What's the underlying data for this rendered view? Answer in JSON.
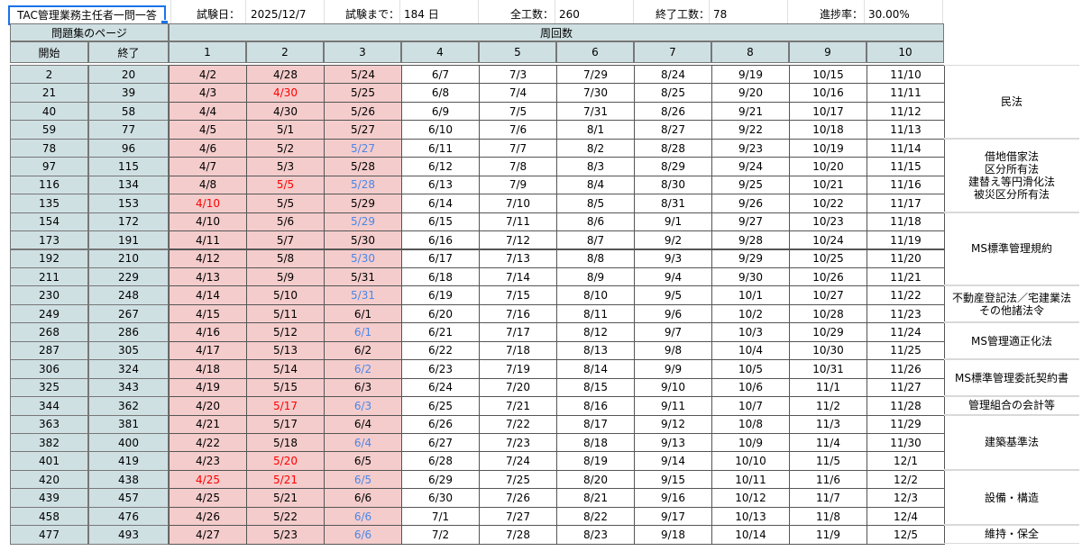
{
  "title": "TAC管理業務主任者一問一答",
  "info": {
    "exam_date_label": "試験日：",
    "exam_date_value": "2025/12/7",
    "until_label": "試験まで：",
    "until_value": "184 日",
    "total_label": "全工数：",
    "total_value": "260",
    "done_label": "終了工数：",
    "done_value": "78",
    "progress_label": "進捗率：",
    "progress_value": "30.00%"
  },
  "headers": {
    "pages_group": "問題集のページ",
    "laps_group": "周回数",
    "start": "開始",
    "end": "終了",
    "laps": [
      "1",
      "2",
      "3",
      "4",
      "5",
      "6",
      "7",
      "8",
      "9",
      "10"
    ]
  },
  "rows": [
    {
      "start": "2",
      "end": "20",
      "dates": [
        "4/2",
        "4/28",
        "5/24",
        "6/7",
        "7/3",
        "7/29",
        "8/24",
        "9/19",
        "10/15",
        "11/10"
      ]
    },
    {
      "start": "21",
      "end": "39",
      "dates": [
        "4/3",
        "4/30",
        "5/25",
        "6/8",
        "7/4",
        "7/30",
        "8/25",
        "9/20",
        "10/16",
        "11/11"
      ]
    },
    {
      "start": "40",
      "end": "58",
      "dates": [
        "4/4",
        "4/30",
        "5/26",
        "6/9",
        "7/5",
        "7/31",
        "8/26",
        "9/21",
        "10/17",
        "11/12"
      ]
    },
    {
      "start": "59",
      "end": "77",
      "dates": [
        "4/5",
        "5/1",
        "5/27",
        "6/10",
        "7/6",
        "8/1",
        "8/27",
        "9/22",
        "10/18",
        "11/13"
      ]
    },
    {
      "start": "78",
      "end": "96",
      "dates": [
        "4/6",
        "5/2",
        "5/27",
        "6/11",
        "7/7",
        "8/2",
        "8/28",
        "9/23",
        "10/19",
        "11/14"
      ]
    },
    {
      "start": "97",
      "end": "115",
      "dates": [
        "4/7",
        "5/3",
        "5/28",
        "6/12",
        "7/8",
        "8/3",
        "8/29",
        "9/24",
        "10/20",
        "11/15"
      ]
    },
    {
      "start": "116",
      "end": "134",
      "dates": [
        "4/8",
        "5/5",
        "5/28",
        "6/13",
        "7/9",
        "8/4",
        "8/30",
        "9/25",
        "10/21",
        "11/16"
      ]
    },
    {
      "start": "135",
      "end": "153",
      "dates": [
        "4/10",
        "5/5",
        "5/29",
        "6/14",
        "7/10",
        "8/5",
        "8/31",
        "9/26",
        "10/22",
        "11/17"
      ]
    },
    {
      "start": "154",
      "end": "172",
      "dates": [
        "4/10",
        "5/6",
        "5/29",
        "6/15",
        "7/11",
        "8/6",
        "9/1",
        "9/27",
        "10/23",
        "11/18"
      ]
    },
    {
      "start": "173",
      "end": "191",
      "dates": [
        "4/11",
        "5/7",
        "5/30",
        "6/16",
        "7/12",
        "8/7",
        "9/2",
        "9/28",
        "10/24",
        "11/19"
      ]
    },
    {
      "start": "192",
      "end": "210",
      "dates": [
        "4/12",
        "5/8",
        "5/30",
        "6/17",
        "7/13",
        "8/8",
        "9/3",
        "9/29",
        "10/25",
        "11/20"
      ]
    },
    {
      "start": "211",
      "end": "229",
      "dates": [
        "4/13",
        "5/9",
        "5/31",
        "6/18",
        "7/14",
        "8/9",
        "9/4",
        "9/30",
        "10/26",
        "11/21"
      ]
    },
    {
      "start": "230",
      "end": "248",
      "dates": [
        "4/14",
        "5/10",
        "5/31",
        "6/19",
        "7/15",
        "8/10",
        "9/5",
        "10/1",
        "10/27",
        "11/22"
      ]
    },
    {
      "start": "249",
      "end": "267",
      "dates": [
        "4/15",
        "5/11",
        "6/1",
        "6/20",
        "7/16",
        "8/11",
        "9/6",
        "10/2",
        "10/28",
        "11/23"
      ]
    },
    {
      "start": "268",
      "end": "286",
      "dates": [
        "4/16",
        "5/12",
        "6/1",
        "6/21",
        "7/17",
        "8/12",
        "9/7",
        "10/3",
        "10/29",
        "11/24"
      ]
    },
    {
      "start": "287",
      "end": "305",
      "dates": [
        "4/17",
        "5/13",
        "6/2",
        "6/22",
        "7/18",
        "8/13",
        "9/8",
        "10/4",
        "10/30",
        "11/25"
      ]
    },
    {
      "start": "306",
      "end": "324",
      "dates": [
        "4/18",
        "5/14",
        "6/2",
        "6/23",
        "7/19",
        "8/14",
        "9/9",
        "10/5",
        "10/31",
        "11/26"
      ]
    },
    {
      "start": "325",
      "end": "343",
      "dates": [
        "4/19",
        "5/15",
        "6/3",
        "6/24",
        "7/20",
        "8/15",
        "9/10",
        "10/6",
        "11/1",
        "11/27"
      ]
    },
    {
      "start": "344",
      "end": "362",
      "dates": [
        "4/20",
        "5/17",
        "6/3",
        "6/25",
        "7/21",
        "8/16",
        "9/11",
        "10/7",
        "11/2",
        "11/28"
      ]
    },
    {
      "start": "363",
      "end": "381",
      "dates": [
        "4/21",
        "5/17",
        "6/4",
        "6/26",
        "7/22",
        "8/17",
        "9/12",
        "10/8",
        "11/3",
        "11/29"
      ]
    },
    {
      "start": "382",
      "end": "400",
      "dates": [
        "4/22",
        "5/18",
        "6/4",
        "6/27",
        "7/23",
        "8/18",
        "9/13",
        "10/9",
        "11/4",
        "11/30"
      ]
    },
    {
      "start": "401",
      "end": "419",
      "dates": [
        "4/23",
        "5/20",
        "6/5",
        "6/28",
        "7/24",
        "8/19",
        "9/14",
        "10/10",
        "11/5",
        "12/1"
      ]
    },
    {
      "start": "420",
      "end": "438",
      "dates": [
        "4/25",
        "5/21",
        "6/5",
        "6/29",
        "7/25",
        "8/20",
        "9/15",
        "10/11",
        "11/6",
        "12/2"
      ]
    },
    {
      "start": "439",
      "end": "457",
      "dates": [
        "4/25",
        "5/21",
        "6/6",
        "6/30",
        "7/26",
        "8/21",
        "9/16",
        "10/12",
        "11/7",
        "12/3"
      ]
    },
    {
      "start": "458",
      "end": "476",
      "dates": [
        "4/26",
        "5/22",
        "6/6",
        "7/1",
        "7/27",
        "8/22",
        "9/17",
        "10/13",
        "11/8",
        "12/4"
      ]
    },
    {
      "start": "477",
      "end": "493",
      "dates": [
        "4/27",
        "5/23",
        "6/6",
        "7/2",
        "7/28",
        "8/23",
        "9/18",
        "10/14",
        "11/9",
        "12/5"
      ]
    }
  ],
  "highlights": {
    "pink_rows": 26,
    "pink_cols": 3,
    "red_cells": [
      [
        1,
        1
      ],
      [
        6,
        1
      ],
      [
        7,
        0
      ],
      [
        18,
        1
      ],
      [
        21,
        1
      ],
      [
        22,
        0
      ],
      [
        22,
        1
      ]
    ],
    "blue_cells": [
      [
        4,
        2
      ],
      [
        6,
        2
      ],
      [
        8,
        2
      ],
      [
        10,
        2
      ],
      [
        12,
        2
      ],
      [
        14,
        2
      ],
      [
        16,
        2
      ],
      [
        18,
        2
      ],
      [
        20,
        2
      ],
      [
        22,
        2
      ],
      [
        24,
        2
      ],
      [
        25,
        2
      ]
    ],
    "colors": {
      "pink": "#f4cccc",
      "red": "#ff0000",
      "blue": "#4a86e8",
      "header": "#cfe0e3"
    }
  },
  "subjects": [
    {
      "first_row": 0,
      "row_count": 4,
      "lines": [
        "民法"
      ]
    },
    {
      "first_row": 4,
      "row_count": 4,
      "lines": [
        "借地借家法",
        "区分所有法",
        "建替え等円滑化法",
        "被災区分所有法"
      ]
    },
    {
      "first_row": 8,
      "row_count": 4,
      "lines": [
        "MS標準管理規約"
      ]
    },
    {
      "first_row": 12,
      "row_count": 2,
      "lines": [
        "不動産登記法／宅建業法",
        "その他諸法令"
      ]
    },
    {
      "first_row": 14,
      "row_count": 2,
      "lines": [
        "MS管理適正化法"
      ]
    },
    {
      "first_row": 16,
      "row_count": 2,
      "lines": [
        "MS標準管理委託契約書"
      ]
    },
    {
      "first_row": 18,
      "row_count": 1,
      "lines": [
        "管理組合の会計等"
      ]
    },
    {
      "first_row": 19,
      "row_count": 3,
      "lines": [
        "建築基準法"
      ]
    },
    {
      "first_row": 22,
      "row_count": 3,
      "lines": [
        "設備・構造"
      ]
    },
    {
      "first_row": 25,
      "row_count": 1,
      "lines": [
        "維持・保全"
      ]
    }
  ]
}
